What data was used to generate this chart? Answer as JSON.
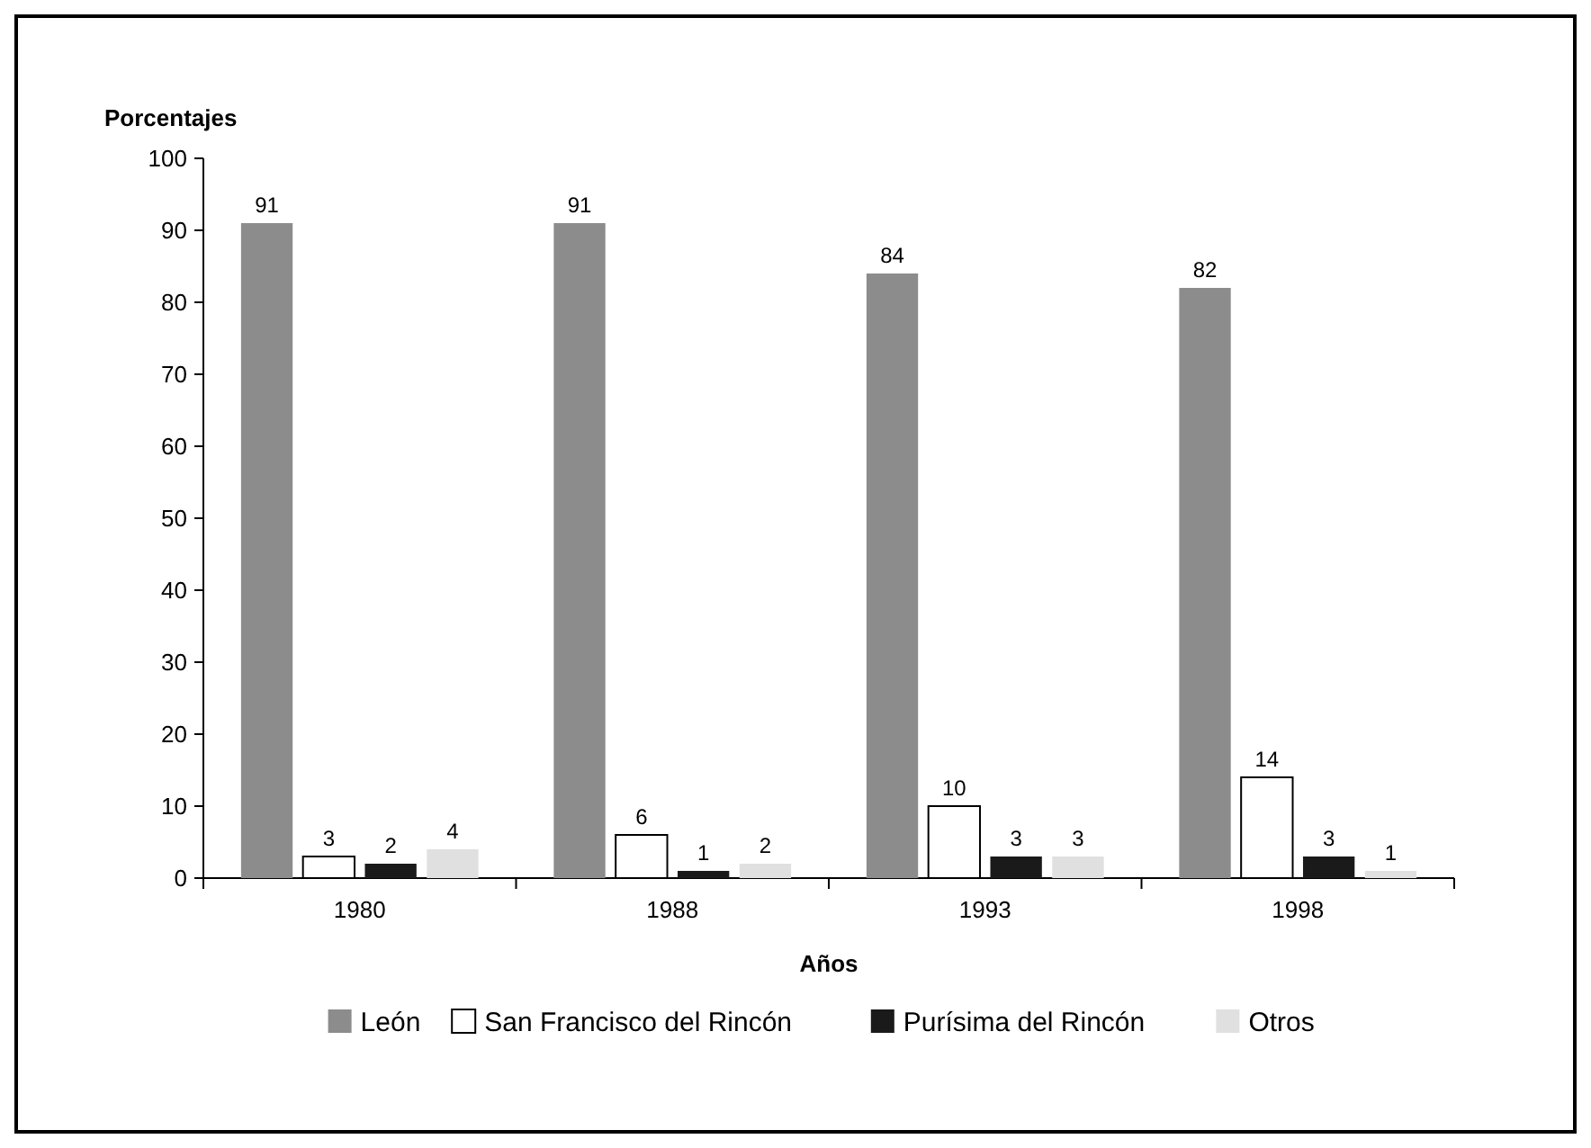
{
  "chart_data": {
    "type": "bar",
    "ylabel": "Porcentajes",
    "xlabel": "Años",
    "categories": [
      "1980",
      "1988",
      "1993",
      "1998"
    ],
    "series": [
      {
        "name": "León",
        "color": "#8c8c8c",
        "values": [
          91,
          91,
          84,
          82
        ]
      },
      {
        "name": "San Francisco del Rincón",
        "color": "#ffffff",
        "values": [
          3,
          6,
          10,
          14
        ]
      },
      {
        "name": "Purísima del Rincón",
        "color": "#1a1a1a",
        "values": [
          2,
          1,
          3,
          3
        ]
      },
      {
        "name": "Otros",
        "color": "#e0e0e0",
        "values": [
          4,
          2,
          3,
          1
        ]
      }
    ],
    "ylim": [
      0,
      100
    ],
    "yticks": [
      0,
      10,
      20,
      30,
      40,
      50,
      60,
      70,
      80,
      90,
      100
    ],
    "data_labels": true,
    "legend": "bottom",
    "grid": false
  }
}
